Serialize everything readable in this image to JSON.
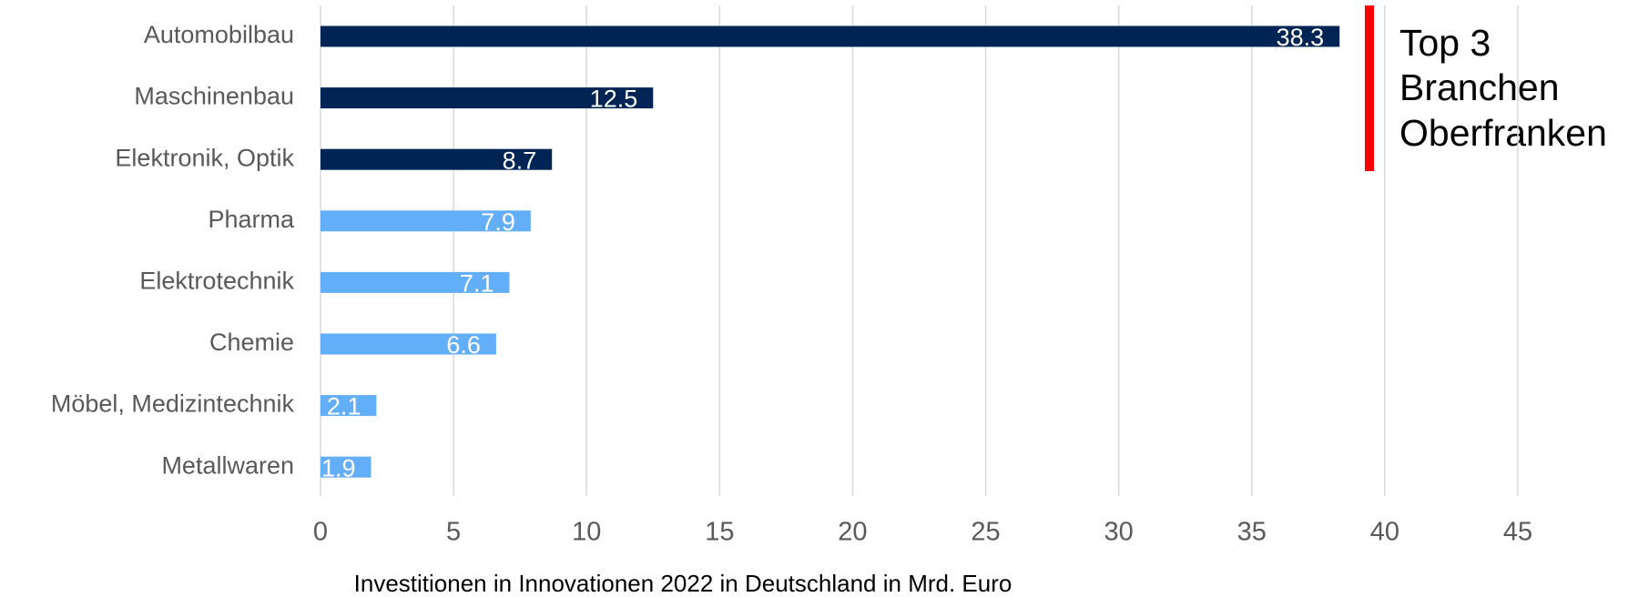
{
  "chart_data": {
    "type": "bar",
    "orientation": "horizontal",
    "categories": [
      "Automobilbau",
      "Maschinenbau",
      "Elektronik, Optik",
      "Pharma",
      "Elektrotechnik",
      "Chemie",
      "Möbel, Medizintechnik",
      "Metallwaren"
    ],
    "values": [
      38.3,
      12.5,
      8.7,
      7.9,
      7.1,
      6.6,
      2.1,
      1.9
    ],
    "colors": [
      "#002554",
      "#002554",
      "#002554",
      "#63aef8",
      "#63aef8",
      "#63aef8",
      "#63aef8",
      "#63aef8"
    ],
    "xlabel": "Investitionen in Innovationen 2022 in Deutschland in Mrd. Euro",
    "xlim": [
      0,
      45
    ],
    "xticks": [
      0,
      5,
      10,
      15,
      20,
      25,
      30,
      35,
      40,
      45
    ],
    "grid": true,
    "annotation": [
      "Top 3",
      "Branchen",
      "Oberfranken"
    ]
  }
}
